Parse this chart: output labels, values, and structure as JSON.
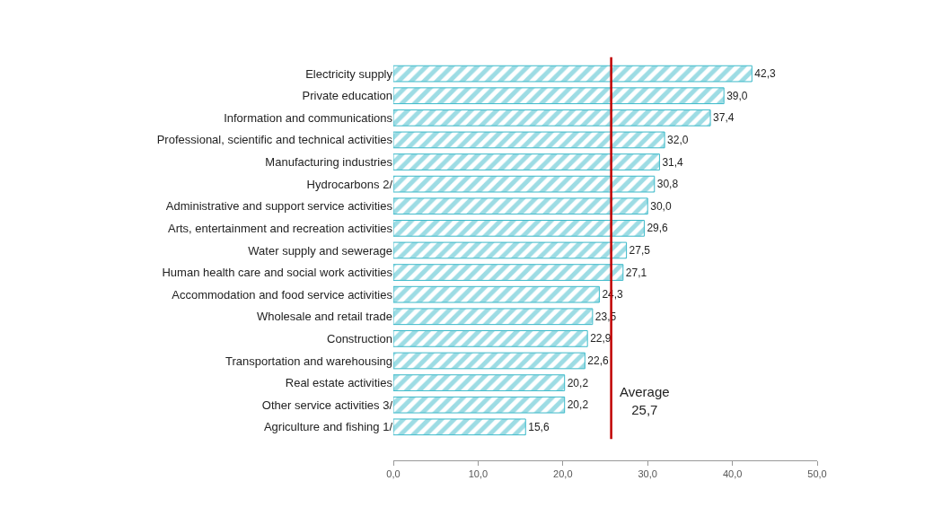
{
  "chart_data": {
    "type": "bar",
    "orientation": "horizontal",
    "categories": [
      "Electricity supply",
      "Private education",
      "Information and communications",
      "Professional, scientific and technical activities",
      "Manufacturing industries",
      "Hydrocarbons 2/",
      "Administrative and support service activities",
      "Arts, entertainment and recreation activities",
      "Water supply and sewerage",
      "Human health care and social work activities",
      "Accommodation and food service activities",
      "Wholesale and retail trade",
      "Construction",
      "Transportation and warehousing",
      "Real estate activities",
      "Other service activities 3/",
      "Agriculture and fishing 1/"
    ],
    "values": [
      42.3,
      39.0,
      37.4,
      32.0,
      31.4,
      30.8,
      30.0,
      29.6,
      27.5,
      27.1,
      24.3,
      23.5,
      22.9,
      22.6,
      20.2,
      20.2,
      15.6
    ],
    "value_labels": [
      "42,3",
      "39,0",
      "37,4",
      "32,0",
      "31,4",
      "30,8",
      "30,0",
      "29,6",
      "27,5",
      "27,1",
      "24,3",
      "23,5",
      "22,9",
      "22,6",
      "20,2",
      "20,2",
      "15,6"
    ],
    "color": "#3bb9c9",
    "xlim": [
      0,
      50
    ],
    "xticks": [
      {
        "value": 0,
        "label": "0,0"
      },
      {
        "value": 10,
        "label": "10,0"
      },
      {
        "value": 20,
        "label": "20,0"
      },
      {
        "value": 30,
        "label": "30,0"
      },
      {
        "value": 40,
        "label": "40,0"
      },
      {
        "value": 50,
        "label": "50,0"
      }
    ],
    "ref_lines": [
      {
        "axis": "x",
        "value": 25.7,
        "label": "Average\n25,7",
        "color": "#c00000"
      }
    ],
    "legend": false
  }
}
